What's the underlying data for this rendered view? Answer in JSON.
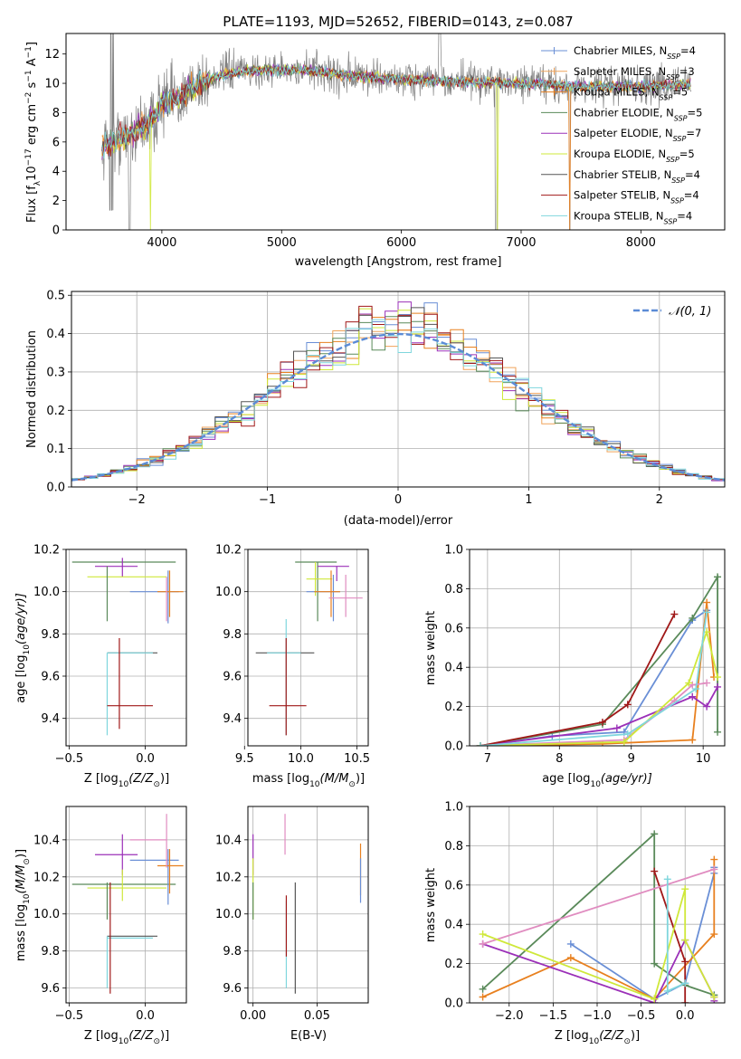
{
  "title": "PLATE=1193, MJD=52652, FIBERID=0143, z=0.087",
  "colors": {
    "data": "#808080",
    "chabrier_miles": "#6a8fd6",
    "salpeter_miles": "#f0a35a",
    "kroupa_miles": "#e8801f",
    "chabrier_elodie": "#5a8a5a",
    "salpeter_elodie": "#9b30b8",
    "kroupa_elodie": "#cfe83a",
    "chabrier_stelib": "#555555",
    "salpeter_stelib": "#a01818",
    "kroupa_stelib": "#7fd6dd",
    "gauss": "#5b8bd6",
    "grid": "#b0b0b0",
    "pink": "#e08cc0",
    "lime": "#c8ef4a"
  },
  "chart_data": [
    {
      "type": "line",
      "id": "spectrum",
      "xlabel": "wavelength [Angstrom, rest frame]",
      "ylabel": "Flux [f",
      "ylabel_parts": [
        "Flux [f",
        "λ",
        "10",
        "−17",
        " erg cm",
        "−2",
        " s",
        "−1",
        " A",
        "−1",
        "]"
      ],
      "xlim": [
        3200,
        8700
      ],
      "ylim": [
        0,
        13.4
      ],
      "xticks": [
        "4000",
        "5000",
        "6000",
        "7000",
        "8000"
      ],
      "yticks": [
        "0",
        "2",
        "4",
        "6",
        "8",
        "10",
        "12"
      ],
      "continuum_knots": [
        [
          3500,
          5.6
        ],
        [
          3700,
          6.4
        ],
        [
          3900,
          7.3
        ],
        [
          4000,
          8.6
        ],
        [
          4100,
          8.8
        ],
        [
          4300,
          9.9
        ],
        [
          4500,
          10.6
        ],
        [
          4800,
          10.9
        ],
        [
          5200,
          10.9
        ],
        [
          5600,
          10.5
        ],
        [
          6000,
          10.3
        ],
        [
          6500,
          10.1
        ],
        [
          7000,
          10.0
        ],
        [
          7500,
          9.8
        ],
        [
          8000,
          9.8
        ],
        [
          8420,
          9.9
        ]
      ],
      "legend": [
        {
          "label": "Chabrier MILES, N",
          "sub": "SSP",
          "tail": "=4",
          "color": "#6a8fd6",
          "marker": true
        },
        {
          "label": "Salpeter MILES, N",
          "sub": "SSP",
          "tail": "=3",
          "color": "#f0a35a",
          "marker": true
        },
        {
          "label": "Kroupa MILES, N",
          "sub": "SSP",
          "tail": "=5",
          "color": "#e8801f",
          "marker": true
        },
        {
          "label": "Chabrier ELODIE, N",
          "sub": "SSP",
          "tail": "=5",
          "color": "#5a8a5a",
          "marker": false
        },
        {
          "label": "Salpeter ELODIE, N",
          "sub": "SSP",
          "tail": "=7",
          "color": "#9b30b8",
          "marker": false
        },
        {
          "label": "Kroupa ELODIE, N",
          "sub": "SSP",
          "tail": "=5",
          "color": "#cfe83a",
          "marker": false
        },
        {
          "label": "Chabrier STELIB, N",
          "sub": "SSP",
          "tail": "=4",
          "color": "#555555",
          "marker": false
        },
        {
          "label": "Salpeter STELIB, N",
          "sub": "SSP",
          "tail": "=4",
          "color": "#a01818",
          "marker": false
        },
        {
          "label": "Kroupa STELIB, N",
          "sub": "SSP",
          "tail": "=4",
          "color": "#7fd6dd",
          "marker": false
        }
      ]
    },
    {
      "type": "line",
      "id": "residuals",
      "xlabel": "(data-model)/error",
      "ylabel": "Normed distribution",
      "xlim": [
        -2.5,
        2.5
      ],
      "ylim": [
        0,
        0.51
      ],
      "xticks": [
        "−2",
        "−1",
        "0",
        "1",
        "2"
      ],
      "yticks": [
        "0.0",
        "0.1",
        "0.2",
        "0.3",
        "0.4",
        "0.5"
      ],
      "legend_label": "𝒩(0, 1)"
    },
    {
      "type": "scatter",
      "id": "age_vs_z",
      "xlabel": "Z [log",
      "xlabel_parts": [
        "Z [log",
        "10",
        "(Z/Z",
        "⊙",
        ")]"
      ],
      "ylabel_parts": [
        "age  [log",
        "10",
        "(age/yr)]"
      ],
      "xlim": [
        -0.52,
        0.27
      ],
      "ylim": [
        9.27,
        10.2
      ],
      "xticks": [
        "−0.5",
        "0.0"
      ],
      "yticks": [
        "9.4",
        "9.6",
        "9.8",
        "10.0",
        "10.2"
      ],
      "points": [
        {
          "x": -0.05,
          "y": 10.14,
          "xe": [
            -0.48,
            0.2
          ],
          "ye": [
            10.14,
            10.14
          ],
          "c": "#5a8a5a"
        },
        {
          "x": -0.15,
          "y": 10.12,
          "xe": [
            -0.33,
            -0.05
          ],
          "ye": [
            10.07,
            10.16
          ],
          "c": "#9b30b8"
        },
        {
          "x": -0.1,
          "y": 10.07,
          "xe": [
            -0.38,
            0.14
          ],
          "ye": [
            10.07,
            10.07
          ],
          "c": "#cfe83a"
        },
        {
          "x": 0.15,
          "y": 10.0,
          "xe": [
            -0.1,
            0.22
          ],
          "ye": [
            9.85,
            10.1
          ],
          "c": "#6a8fd6"
        },
        {
          "x": 0.16,
          "y": 10.0,
          "xe": [
            0.08,
            0.25
          ],
          "ye": [
            9.88,
            10.1
          ],
          "c": "#e8801f"
        },
        {
          "x": 0.14,
          "y": 9.98,
          "xe": [
            0.14,
            0.14
          ],
          "ye": [
            9.86,
            10.07
          ],
          "c": "#e08cc0"
        },
        {
          "x": -0.25,
          "y": 10.0,
          "xe": [
            -0.25,
            -0.25
          ],
          "ye": [
            9.86,
            10.12
          ],
          "c": "#5a8a5a"
        },
        {
          "x": -0.15,
          "y": 9.71,
          "xe": [
            -0.25,
            0.08
          ],
          "ye": [
            9.71,
            9.71
          ],
          "c": "#555555"
        },
        {
          "x": -0.25,
          "y": 9.71,
          "xe": [
            -0.25,
            0.05
          ],
          "ye": [
            9.32,
            9.71
          ],
          "c": "#7fd6dd"
        },
        {
          "x": -0.17,
          "y": 9.46,
          "xe": [
            -0.25,
            0.05
          ],
          "ye": [
            9.35,
            9.78
          ],
          "c": "#a01818"
        }
      ]
    },
    {
      "type": "scatter",
      "id": "age_vs_mass",
      "xlabel_parts": [
        "mass [log",
        "10",
        "(M/M",
        "⊙",
        ")]"
      ],
      "xlim": [
        9.53,
        10.6
      ],
      "ylim": [
        9.27,
        10.2
      ],
      "xticks": [
        "9.5",
        "10.0",
        "10.5"
      ],
      "yticks": [
        "9.4",
        "9.6",
        "9.8",
        "10.0",
        "10.2"
      ],
      "points": [
        {
          "x": 10.15,
          "y": 10.14,
          "xe": [
            9.95,
            10.32
          ],
          "ye": [
            9.86,
            10.14
          ],
          "c": "#5a8a5a"
        },
        {
          "x": 10.32,
          "y": 10.12,
          "xe": [
            10.15,
            10.43
          ],
          "ye": [
            10.05,
            10.12
          ],
          "c": "#9b30b8"
        },
        {
          "x": 10.13,
          "y": 10.06,
          "xe": [
            10.05,
            10.28
          ],
          "ye": [
            9.98,
            10.14
          ],
          "c": "#cfe83a"
        },
        {
          "x": 10.29,
          "y": 10.0,
          "xe": [
            10.05,
            10.35
          ],
          "ye": [
            9.86,
            10.08
          ],
          "c": "#6a8fd6"
        },
        {
          "x": 10.27,
          "y": 10.0,
          "xe": [
            10.12,
            10.35
          ],
          "ye": [
            9.88,
            10.1
          ],
          "c": "#e8801f"
        },
        {
          "x": 10.4,
          "y": 9.97,
          "xe": [
            10.25,
            10.55
          ],
          "ye": [
            9.88,
            10.08
          ],
          "c": "#e08cc0"
        },
        {
          "x": 9.88,
          "y": 9.71,
          "xe": [
            9.6,
            10.12
          ],
          "ye": [
            9.71,
            9.71
          ],
          "c": "#555555"
        },
        {
          "x": 9.87,
          "y": 9.71,
          "xe": [
            9.7,
            10.0
          ],
          "ye": [
            9.32,
            9.87
          ],
          "c": "#7fd6dd"
        },
        {
          "x": 9.87,
          "y": 9.46,
          "xe": [
            9.72,
            10.05
          ],
          "ye": [
            9.32,
            9.78
          ],
          "c": "#a01818"
        }
      ]
    },
    {
      "type": "line",
      "id": "mw_vs_age",
      "xlabel_parts": [
        "age  [log",
        "10",
        "(age/yr)]"
      ],
      "ylabel": "mass weight",
      "xlim": [
        6.75,
        10.3
      ],
      "ylim": [
        0,
        1.0
      ],
      "xticks": [
        "7",
        "8",
        "9",
        "10"
      ],
      "yticks": [
        "0.0",
        "0.2",
        "0.4",
        "0.6",
        "0.8",
        "1.0"
      ],
      "series": [
        {
          "c": "#6a8fd6",
          "x": [
            6.9,
            7.9,
            8.9,
            9.85,
            10.05
          ],
          "y": [
            0.0,
            0.05,
            0.07,
            0.64,
            0.69
          ]
        },
        {
          "c": "#e8801f",
          "x": [
            6.9,
            8.6,
            9.85,
            10.05,
            10.15
          ],
          "y": [
            0.0,
            0.01,
            0.03,
            0.73,
            0.35
          ]
        },
        {
          "c": "#5a8a5a",
          "x": [
            6.9,
            8.6,
            9.85,
            10.2,
            10.2
          ],
          "y": [
            0.0,
            0.11,
            0.65,
            0.86,
            0.07
          ]
        },
        {
          "c": "#9b30b8",
          "x": [
            6.9,
            8.8,
            9.85,
            10.05,
            10.2
          ],
          "y": [
            0.0,
            0.09,
            0.25,
            0.2,
            0.3
          ]
        },
        {
          "c": "#a01818",
          "x": [
            6.9,
            8.6,
            8.95,
            9.6
          ],
          "y": [
            0.0,
            0.12,
            0.21,
            0.67
          ]
        },
        {
          "c": "#e08cc0",
          "x": [
            6.9,
            8.9,
            9.6,
            9.85,
            10.05
          ],
          "y": [
            0.0,
            0.03,
            0.23,
            0.31,
            0.32
          ]
        },
        {
          "c": "#cfe83a",
          "x": [
            6.9,
            8.9,
            9.8,
            10.05,
            10.2
          ],
          "y": [
            0.0,
            0.02,
            0.32,
            0.58,
            0.35
          ]
        },
        {
          "c": "#7fd6dd",
          "x": [
            6.9,
            8.95,
            9.9,
            10.05
          ],
          "y": [
            0.0,
            0.06,
            0.29,
            0.68
          ]
        }
      ]
    },
    {
      "type": "scatter",
      "id": "mass_vs_z",
      "xlabel_parts": [
        "Z [log",
        "10",
        "(Z/Z",
        "⊙",
        ")]"
      ],
      "ylabel_parts": [
        "mass [log",
        "10",
        "(M/M",
        "⊙",
        ")]"
      ],
      "xlim": [
        -0.52,
        0.27
      ],
      "ylim": [
        9.52,
        10.58
      ],
      "xticks": [
        "−0.5",
        "0.0"
      ],
      "yticks": [
        "9.6",
        "9.8",
        "10.0",
        "10.2",
        "10.4"
      ],
      "points": [
        {
          "x": -0.05,
          "y": 10.16,
          "xe": [
            -0.48,
            0.2
          ],
          "ye": [
            10.16,
            10.16
          ],
          "c": "#5a8a5a"
        },
        {
          "x": -0.15,
          "y": 10.32,
          "xe": [
            -0.33,
            -0.05
          ],
          "ye": [
            10.21,
            10.43
          ],
          "c": "#9b30b8"
        },
        {
          "x": -0.15,
          "y": 10.14,
          "xe": [
            -0.38,
            0.14
          ],
          "ye": [
            10.07,
            10.24
          ],
          "c": "#cfe83a"
        },
        {
          "x": 0.15,
          "y": 10.29,
          "xe": [
            -0.1,
            0.22
          ],
          "ye": [
            10.05,
            10.35
          ],
          "c": "#6a8fd6"
        },
        {
          "x": 0.16,
          "y": 10.26,
          "xe": [
            0.08,
            0.25
          ],
          "ye": [
            10.11,
            10.35
          ],
          "c": "#e8801f"
        },
        {
          "x": 0.14,
          "y": 10.4,
          "xe": [
            -0.1,
            0.14
          ],
          "ye": [
            10.25,
            10.54
          ],
          "c": "#e08cc0"
        },
        {
          "x": -0.25,
          "y": 10.15,
          "xe": [
            -0.25,
            -0.25
          ],
          "ye": [
            9.97,
            10.17
          ],
          "c": "#5a8a5a"
        },
        {
          "x": -0.15,
          "y": 9.88,
          "xe": [
            -0.25,
            0.08
          ],
          "ye": [
            9.88,
            9.88
          ],
          "c": "#555555"
        },
        {
          "x": -0.25,
          "y": 9.87,
          "xe": [
            -0.25,
            0.05
          ],
          "ye": [
            9.6,
            9.88
          ],
          "c": "#7fd6dd"
        },
        {
          "x": -0.23,
          "y": 9.87,
          "xe": [
            -0.23,
            -0.23
          ],
          "ye": [
            9.57,
            10.17
          ],
          "c": "#a01818"
        }
      ]
    },
    {
      "type": "scatter",
      "id": "mass_vs_ebv",
      "xlabel": "E(B-V)",
      "xlim": [
        -0.004,
        0.09
      ],
      "ylim": [
        9.52,
        10.58
      ],
      "xticks": [
        "0.00",
        "0.05"
      ],
      "yticks": [
        "9.6",
        "9.8",
        "10.0",
        "10.2",
        "10.4"
      ],
      "points": [
        {
          "x": 0.0,
          "y": 10.32,
          "xe": [
            0.0,
            0.0
          ],
          "ye": [
            10.21,
            10.43
          ],
          "c": "#9b30b8"
        },
        {
          "x": 0.0,
          "y": 10.14,
          "xe": [
            0.0,
            0.0
          ],
          "ye": [
            9.97,
            10.3
          ],
          "c": "#cfe83a"
        },
        {
          "x": 0.0,
          "y": 10.1,
          "xe": [
            0.0,
            0.0
          ],
          "ye": [
            9.97,
            10.17
          ],
          "c": "#5a8a5a"
        },
        {
          "x": 0.025,
          "y": 10.4,
          "xe": [
            0.025,
            0.025
          ],
          "ye": [
            10.32,
            10.54
          ],
          "c": "#e08cc0"
        },
        {
          "x": 0.026,
          "y": 9.87,
          "xe": [
            0.026,
            0.026
          ],
          "ye": [
            9.6,
            10.07
          ],
          "c": "#7fd6dd"
        },
        {
          "x": 0.026,
          "y": 9.95,
          "xe": [
            0.026,
            0.026
          ],
          "ye": [
            9.77,
            10.1
          ],
          "c": "#a01818"
        },
        {
          "x": 0.033,
          "y": 9.88,
          "xe": [
            0.033,
            0.033
          ],
          "ye": [
            9.57,
            10.17
          ],
          "c": "#555555"
        },
        {
          "x": 0.084,
          "y": 10.26,
          "xe": [
            0.084,
            0.084
          ],
          "ye": [
            10.1,
            10.38
          ],
          "c": "#e8801f"
        },
        {
          "x": 0.084,
          "y": 10.2,
          "xe": [
            0.084,
            0.084
          ],
          "ye": [
            10.06,
            10.3
          ],
          "c": "#6a8fd6"
        }
      ]
    },
    {
      "type": "line",
      "id": "mw_vs_z",
      "xlabel_parts": [
        "Z [log",
        "10",
        "(Z/Z",
        "⊙",
        ")]"
      ],
      "ylabel": "mass weight",
      "xlim": [
        -2.45,
        0.45
      ],
      "ylim": [
        0,
        1.0
      ],
      "xticks": [
        "−2.0",
        "−1.5",
        "−1.0",
        "−0.5",
        "0.0"
      ],
      "yticks": [
        "0.0",
        "0.2",
        "0.4",
        "0.6",
        "0.8",
        "1.0"
      ],
      "series": [
        {
          "c": "#6a8fd6",
          "x": [
            -1.3,
            -0.35,
            0.0,
            0.33,
            0.33
          ],
          "y": [
            0.3,
            0.02,
            0.1,
            0.66,
            0.69
          ]
        },
        {
          "c": "#e8801f",
          "x": [
            -2.3,
            -1.3,
            -0.35,
            0.33,
            0.33
          ],
          "y": [
            0.03,
            0.23,
            0.02,
            0.35,
            0.73
          ]
        },
        {
          "c": "#5a8a5a",
          "x": [
            -2.3,
            -0.35,
            -0.35,
            0.0,
            0.33
          ],
          "y": [
            0.07,
            0.86,
            0.2,
            0.09,
            0.04
          ]
        },
        {
          "c": "#9b30b8",
          "x": [
            -2.3,
            -0.35,
            0.0,
            0.33,
            0.33
          ],
          "y": [
            0.3,
            0.0,
            0.32,
            0.03,
            0.01
          ]
        },
        {
          "c": "#a01818",
          "x": [
            -0.35,
            0.0,
            0.0
          ],
          "y": [
            0.67,
            0.21,
            0.0
          ]
        },
        {
          "c": "#e08cc0",
          "x": [
            -2.3,
            0.33
          ],
          "y": [
            0.3,
            0.68
          ]
        },
        {
          "c": "#cfe83a",
          "x": [
            -2.3,
            -0.35,
            0.0,
            0.0,
            0.33
          ],
          "y": [
            0.35,
            0.02,
            0.58,
            0.32,
            0.03
          ]
        },
        {
          "c": "#7fd6dd",
          "x": [
            -0.2,
            -0.2,
            0.0
          ],
          "y": [
            0.63,
            0.06,
            0.1
          ]
        }
      ]
    }
  ]
}
